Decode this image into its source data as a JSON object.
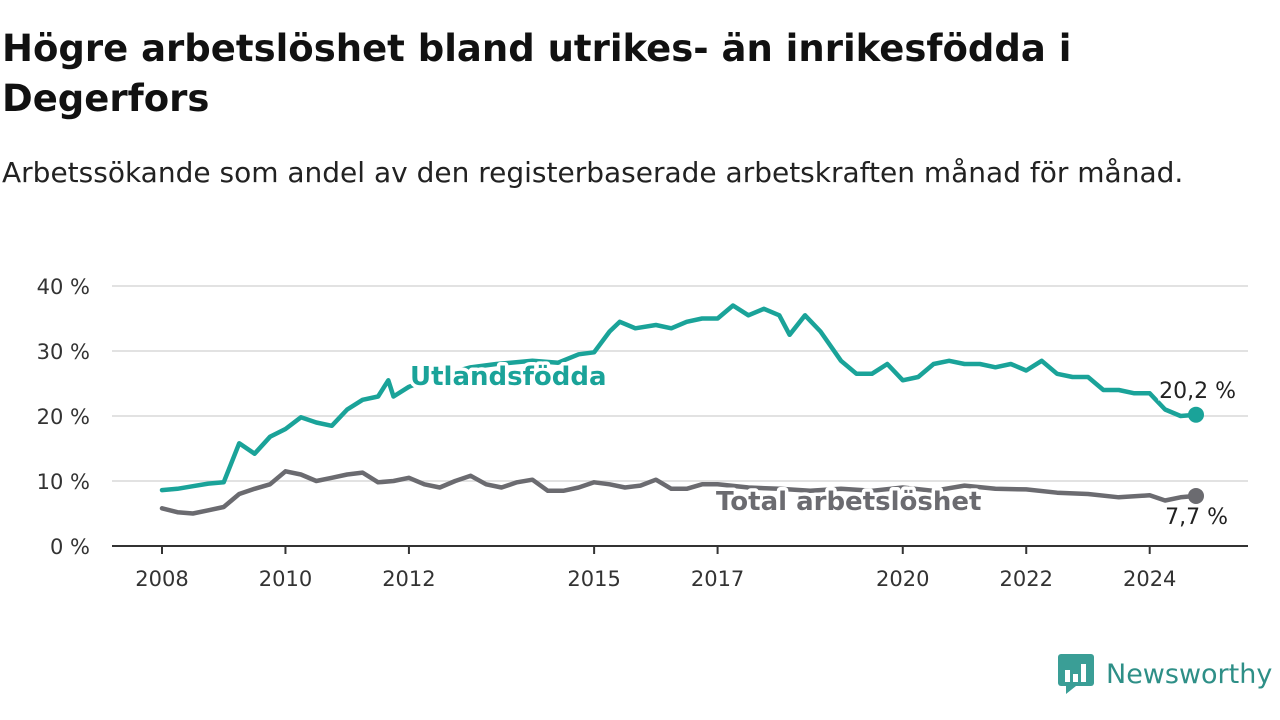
{
  "header": {
    "title": "Högre arbetslöshet bland utrikes- än inrikesfödda i Degerfors",
    "subtitle": "Arbetssökande som andel av den registerbaserade arbetskraften månad för månad."
  },
  "brand": {
    "name": "Newsworthy",
    "icon": "newsworthy-logo-icon",
    "color": "#3a9e96"
  },
  "colors": {
    "utlandsfodda": "#1aa399",
    "total": "#6b6b70",
    "grid": "#d9d9d9",
    "axis": "#333333"
  },
  "chart_data": {
    "type": "line",
    "title": "Högre arbetslöshet bland utrikes- än inrikesfödda i Degerfors",
    "subtitle": "Arbetssökande som andel av den registerbaserade arbetskraften månad för månad.",
    "ylim": [
      0,
      40
    ],
    "y_ticks": [
      0,
      10,
      20,
      30,
      40
    ],
    "y_tick_labels": [
      "0 %",
      "10 %",
      "20 %",
      "30 %",
      "40 %"
    ],
    "x_ticks": [
      "2008-01",
      "2010-01",
      "2012-01",
      "2015-01",
      "2017-01",
      "2020-01",
      "2022-01",
      "2024-01"
    ],
    "x_tick_labels": [
      "2008",
      "2010",
      "2012",
      "2015",
      "2017",
      "2020",
      "2022",
      "2024"
    ],
    "grid": true,
    "unit": "%",
    "series": [
      {
        "name": "Utlandsfödda",
        "color": "#1aa399",
        "end_label": "20,2 %",
        "points": [
          [
            "2008-01",
            8.6
          ],
          [
            "2008-04",
            8.8
          ],
          [
            "2008-07",
            9.2
          ],
          [
            "2008-10",
            9.6
          ],
          [
            "2009-01",
            9.8
          ],
          [
            "2009-04",
            15.8
          ],
          [
            "2009-07",
            14.2
          ],
          [
            "2009-10",
            16.8
          ],
          [
            "2010-01",
            18.0
          ],
          [
            "2010-04",
            19.8
          ],
          [
            "2010-07",
            19.0
          ],
          [
            "2010-10",
            18.5
          ],
          [
            "2011-01",
            21.0
          ],
          [
            "2011-04",
            22.5
          ],
          [
            "2011-07",
            23.0
          ],
          [
            "2011-09",
            25.5
          ],
          [
            "2011-10",
            23.0
          ],
          [
            "2012-01",
            24.5
          ],
          [
            "2012-06",
            26.0
          ],
          [
            "2013-01",
            27.5
          ],
          [
            "2013-06",
            28.0
          ],
          [
            "2014-01",
            28.5
          ],
          [
            "2014-06",
            28.2
          ],
          [
            "2014-10",
            29.5
          ],
          [
            "2015-01",
            29.8
          ],
          [
            "2015-04",
            33.0
          ],
          [
            "2015-06",
            34.5
          ],
          [
            "2015-09",
            33.5
          ],
          [
            "2016-01",
            34.0
          ],
          [
            "2016-04",
            33.5
          ],
          [
            "2016-07",
            34.5
          ],
          [
            "2016-10",
            35.0
          ],
          [
            "2017-01",
            35.0
          ],
          [
            "2017-04",
            37.0
          ],
          [
            "2017-07",
            35.5
          ],
          [
            "2017-10",
            36.5
          ],
          [
            "2018-01",
            35.5
          ],
          [
            "2018-03",
            32.5
          ],
          [
            "2018-06",
            35.5
          ],
          [
            "2018-09",
            33.0
          ],
          [
            "2019-01",
            28.5
          ],
          [
            "2019-04",
            26.5
          ],
          [
            "2019-07",
            26.5
          ],
          [
            "2019-10",
            28.0
          ],
          [
            "2020-01",
            25.5
          ],
          [
            "2020-04",
            26.0
          ],
          [
            "2020-07",
            28.0
          ],
          [
            "2020-10",
            28.5
          ],
          [
            "2021-01",
            28.0
          ],
          [
            "2021-04",
            28.0
          ],
          [
            "2021-07",
            27.5
          ],
          [
            "2021-10",
            28.0
          ],
          [
            "2022-01",
            27.0
          ],
          [
            "2022-04",
            28.5
          ],
          [
            "2022-07",
            26.5
          ],
          [
            "2022-10",
            26.0
          ],
          [
            "2023-01",
            26.0
          ],
          [
            "2023-04",
            24.0
          ],
          [
            "2023-07",
            24.0
          ],
          [
            "2023-10",
            23.5
          ],
          [
            "2024-01",
            23.5
          ],
          [
            "2024-04",
            21.0
          ],
          [
            "2024-07",
            20.0
          ],
          [
            "2024-10",
            20.2
          ]
        ]
      },
      {
        "name": "Total arbetslöshet",
        "color": "#6b6b70",
        "end_label": "7,7 %",
        "points": [
          [
            "2008-01",
            5.8
          ],
          [
            "2008-04",
            5.2
          ],
          [
            "2008-07",
            5.0
          ],
          [
            "2008-10",
            5.5
          ],
          [
            "2009-01",
            6.0
          ],
          [
            "2009-04",
            8.0
          ],
          [
            "2009-07",
            8.8
          ],
          [
            "2009-10",
            9.5
          ],
          [
            "2010-01",
            11.5
          ],
          [
            "2010-04",
            11.0
          ],
          [
            "2010-07",
            10.0
          ],
          [
            "2010-10",
            10.5
          ],
          [
            "2011-01",
            11.0
          ],
          [
            "2011-04",
            11.3
          ],
          [
            "2011-07",
            9.8
          ],
          [
            "2011-10",
            10.0
          ],
          [
            "2012-01",
            10.5
          ],
          [
            "2012-04",
            9.5
          ],
          [
            "2012-07",
            9.0
          ],
          [
            "2012-10",
            10.0
          ],
          [
            "2013-01",
            10.8
          ],
          [
            "2013-04",
            9.5
          ],
          [
            "2013-07",
            9.0
          ],
          [
            "2013-10",
            9.8
          ],
          [
            "2014-01",
            10.2
          ],
          [
            "2014-04",
            8.5
          ],
          [
            "2014-07",
            8.5
          ],
          [
            "2014-10",
            9.0
          ],
          [
            "2015-01",
            9.8
          ],
          [
            "2015-04",
            9.5
          ],
          [
            "2015-07",
            9.0
          ],
          [
            "2015-10",
            9.3
          ],
          [
            "2016-01",
            10.2
          ],
          [
            "2016-04",
            8.8
          ],
          [
            "2016-07",
            8.8
          ],
          [
            "2016-10",
            9.5
          ],
          [
            "2017-01",
            9.5
          ],
          [
            "2017-07",
            9.0
          ],
          [
            "2018-01",
            8.8
          ],
          [
            "2018-07",
            8.5
          ],
          [
            "2019-01",
            8.8
          ],
          [
            "2019-07",
            8.5
          ],
          [
            "2020-01",
            9.0
          ],
          [
            "2020-07",
            8.5
          ],
          [
            "2021-01",
            9.3
          ],
          [
            "2021-07",
            8.8
          ],
          [
            "2022-01",
            8.7
          ],
          [
            "2022-07",
            8.2
          ],
          [
            "2023-01",
            8.0
          ],
          [
            "2023-07",
            7.5
          ],
          [
            "2024-01",
            7.8
          ],
          [
            "2024-04",
            7.0
          ],
          [
            "2024-07",
            7.5
          ],
          [
            "2024-10",
            7.7
          ]
        ]
      }
    ]
  }
}
